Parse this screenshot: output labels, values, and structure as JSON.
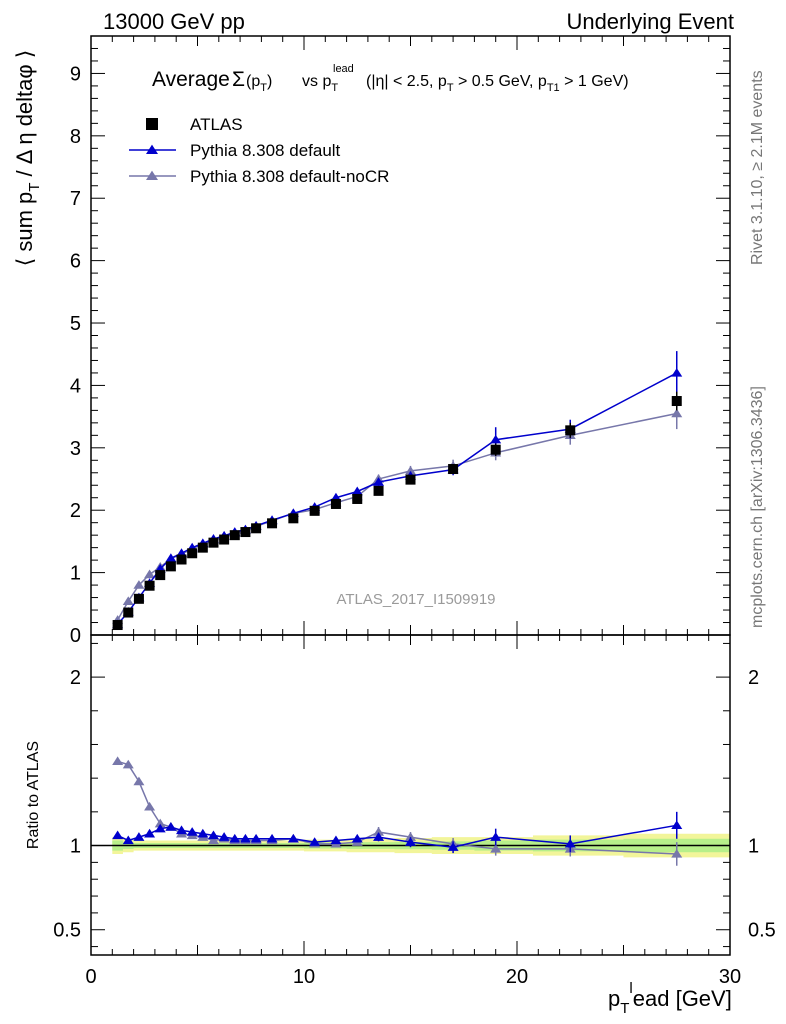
{
  "header": {
    "left": "13000 GeV pp",
    "right": "Underlying Event"
  },
  "side_labels": {
    "rivet": "Rivet 3.1.10, ≥ 2.1M events",
    "mcplots": "mcplots.cern.ch [arXiv:1306.3436]"
  },
  "chart_data": [
    {
      "type": "scatter",
      "title": "Average Σ(pT) vs pTlead (|η| < 2.5, pT > 0.5 GeV, pT1 > 1 GeV)",
      "ylabel": "⟨ sum pT / Δη deltaφ ⟩",
      "xlabel": "pTlead [GeV]",
      "watermark": "ATLAS_2017_I1509919",
      "xlim": [
        0,
        30
      ],
      "ylim": [
        0,
        9.6
      ],
      "yticks": [
        0,
        1,
        2,
        3,
        4,
        5,
        6,
        7,
        8,
        9
      ],
      "legend_position": "top-left",
      "x": [
        1.25,
        1.75,
        2.25,
        2.75,
        3.25,
        3.75,
        4.25,
        4.75,
        5.25,
        5.75,
        6.25,
        6.75,
        7.25,
        7.75,
        8.5,
        9.5,
        10.5,
        11.5,
        12.5,
        13.5,
        15.0,
        17.0,
        19.0,
        22.5,
        27.5
      ],
      "series": [
        {
          "name": "ATLAS",
          "color": "#000000",
          "marker": "square",
          "values": [
            0.16,
            0.36,
            0.58,
            0.79,
            0.96,
            1.1,
            1.21,
            1.31,
            1.4,
            1.48,
            1.53,
            1.6,
            1.65,
            1.71,
            1.79,
            1.87,
            1.99,
            2.1,
            2.18,
            2.31,
            2.49,
            2.66,
            2.97,
            3.28,
            3.75
          ],
          "errors": [
            0.02,
            0.02,
            0.03,
            0.03,
            0.03,
            0.03,
            0.03,
            0.03,
            0.03,
            0.03,
            0.03,
            0.03,
            0.03,
            0.03,
            0.04,
            0.04,
            0.04,
            0.05,
            0.05,
            0.06,
            0.06,
            0.08,
            0.1,
            0.12,
            0.15
          ]
        },
        {
          "name": "Pythia 8.308 default",
          "color": "#0000cc",
          "marker": "triangle",
          "values": [
            0.17,
            0.37,
            0.6,
            0.83,
            1.06,
            1.23,
            1.31,
            1.4,
            1.47,
            1.54,
            1.59,
            1.65,
            1.69,
            1.75,
            1.84,
            1.95,
            2.05,
            2.2,
            2.3,
            2.45,
            2.55,
            2.65,
            3.13,
            3.3,
            4.2
          ],
          "errors": [
            0.02,
            0.02,
            0.02,
            0.02,
            0.02,
            0.02,
            0.02,
            0.02,
            0.02,
            0.02,
            0.02,
            0.02,
            0.02,
            0.02,
            0.03,
            0.03,
            0.04,
            0.05,
            0.05,
            0.06,
            0.07,
            0.09,
            0.2,
            0.15,
            0.35
          ]
        },
        {
          "name": "Pythia 8.308 default-noCR",
          "color": "#7777aa",
          "marker": "triangle",
          "values": [
            0.24,
            0.54,
            0.8,
            0.97,
            1.09,
            1.22,
            1.3,
            1.38,
            1.46,
            1.52,
            1.58,
            1.63,
            1.68,
            1.74,
            1.83,
            1.95,
            2.01,
            2.12,
            2.22,
            2.5,
            2.63,
            2.71,
            2.92,
            3.2,
            3.55
          ],
          "errors": [
            0.02,
            0.02,
            0.02,
            0.02,
            0.02,
            0.02,
            0.02,
            0.02,
            0.02,
            0.02,
            0.02,
            0.02,
            0.02,
            0.02,
            0.03,
            0.03,
            0.04,
            0.05,
            0.05,
            0.07,
            0.08,
            0.1,
            0.12,
            0.15,
            0.25
          ]
        }
      ]
    },
    {
      "type": "scatter",
      "ylabel": "Ratio to ATLAS",
      "xlabel": "pTlead [GeV]",
      "xlim": [
        0,
        30
      ],
      "xticks": [
        0,
        10,
        20,
        30
      ],
      "ylim": [
        0.35,
        2.25
      ],
      "yticks": [
        0.5,
        1,
        2
      ],
      "x": [
        1.25,
        1.75,
        2.25,
        2.75,
        3.25,
        3.75,
        4.25,
        4.75,
        5.25,
        5.75,
        6.25,
        6.75,
        7.25,
        7.75,
        8.5,
        9.5,
        10.5,
        11.5,
        12.5,
        13.5,
        15.0,
        17.0,
        19.0,
        22.5,
        27.5
      ],
      "band_inner_halfwidth": [
        0.03,
        0.02,
        0.015,
        0.015,
        0.015,
        0.015,
        0.015,
        0.015,
        0.015,
        0.015,
        0.015,
        0.015,
        0.015,
        0.015,
        0.015,
        0.015,
        0.018,
        0.018,
        0.02,
        0.02,
        0.022,
        0.025,
        0.03,
        0.035,
        0.04
      ],
      "band_outer_halfwidth": [
        0.05,
        0.04,
        0.03,
        0.03,
        0.03,
        0.03,
        0.03,
        0.03,
        0.03,
        0.03,
        0.03,
        0.03,
        0.03,
        0.03,
        0.03,
        0.03,
        0.035,
        0.035,
        0.04,
        0.04,
        0.045,
        0.05,
        0.05,
        0.06,
        0.07
      ],
      "series": [
        {
          "name": "Pythia 8.308 default",
          "color": "#0000cc",
          "values": [
            1.06,
            1.03,
            1.05,
            1.07,
            1.1,
            1.11,
            1.09,
            1.08,
            1.07,
            1.06,
            1.05,
            1.04,
            1.04,
            1.04,
            1.04,
            1.04,
            1.02,
            1.03,
            1.04,
            1.05,
            1.02,
            0.99,
            1.05,
            1.01,
            1.12
          ],
          "errors": [
            0.015,
            0.015,
            0.015,
            0.015,
            0.015,
            0.015,
            0.015,
            0.015,
            0.015,
            0.015,
            0.015,
            0.015,
            0.015,
            0.015,
            0.015,
            0.015,
            0.02,
            0.02,
            0.02,
            0.025,
            0.03,
            0.035,
            0.05,
            0.05,
            0.08
          ]
        },
        {
          "name": "Pythia 8.308 default-noCR",
          "color": "#7777aa",
          "values": [
            1.5,
            1.48,
            1.38,
            1.23,
            1.13,
            1.11,
            1.07,
            1.06,
            1.05,
            1.03,
            1.04,
            1.03,
            1.03,
            1.03,
            1.03,
            1.04,
            1.01,
            1.01,
            1.02,
            1.08,
            1.05,
            1.01,
            0.98,
            0.98,
            0.95
          ],
          "errors": [
            0.015,
            0.015,
            0.015,
            0.015,
            0.015,
            0.015,
            0.015,
            0.015,
            0.015,
            0.015,
            0.015,
            0.015,
            0.015,
            0.015,
            0.015,
            0.015,
            0.02,
            0.02,
            0.02,
            0.03,
            0.03,
            0.035,
            0.04,
            0.045,
            0.07
          ]
        }
      ]
    }
  ]
}
